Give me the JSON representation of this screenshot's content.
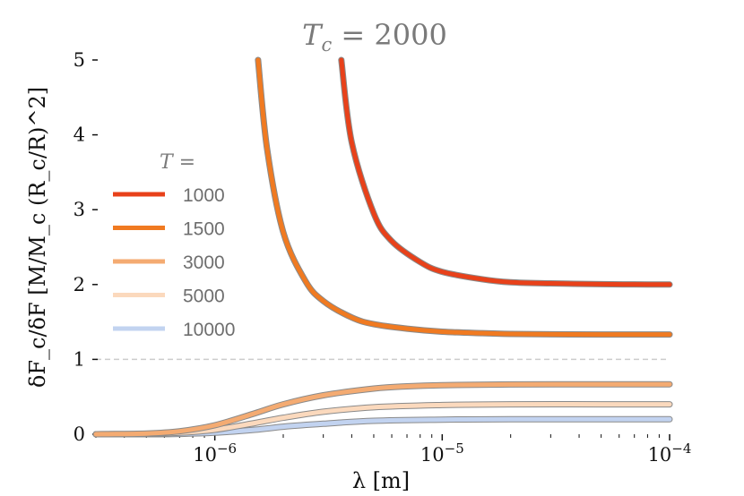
{
  "chart_data": {
    "type": "line",
    "title": "T_c = 2000",
    "title_parts": {
      "base": "T",
      "sub": "c",
      "rest": " = 2000"
    },
    "xlabel": "λ [m]",
    "ylabel": "δF_c/δF [M/M_c (R_c/R)^2]",
    "xscale": "log",
    "xlim": [
      3e-07,
      0.0001
    ],
    "ylim": [
      0,
      5
    ],
    "x_ticks": [
      {
        "value": 1e-06,
        "base": "10",
        "exp": "−6"
      },
      {
        "value": 1e-05,
        "base": "10",
        "exp": "−5"
      },
      {
        "value": 0.0001,
        "base": "10",
        "exp": "−4"
      }
    ],
    "y_ticks": [
      "0",
      "1",
      "2",
      "3",
      "4",
      "5"
    ],
    "y_tick_values": [
      0,
      1,
      2,
      3,
      4,
      5
    ],
    "reference_line": {
      "y": 1,
      "style": "dashed",
      "color": "#cccccc"
    },
    "grid": false,
    "legend": {
      "title": "T =",
      "placement": "center-left"
    },
    "series": [
      {
        "name": "1000",
        "color": "#e8411a",
        "x": [
          3.6e-06,
          4e-06,
          5e-06,
          6e-06,
          8e-06,
          1e-05,
          1.5e-05,
          2e-05,
          3e-05,
          5e-05,
          7e-05,
          0.0001
        ],
        "y": [
          5.0,
          3.9,
          2.95,
          2.58,
          2.3,
          2.17,
          2.07,
          2.03,
          2.015,
          2.005,
          2.002,
          2.0
        ]
      },
      {
        "name": "1500",
        "color": "#f07a21",
        "x": [
          1.55e-06,
          1.7e-06,
          2e-06,
          2.5e-06,
          3e-06,
          4e-06,
          5e-06,
          7e-06,
          1e-05,
          1.5e-05,
          2e-05,
          3e-05,
          5e-05,
          0.0001
        ],
        "y": [
          5.0,
          3.8,
          2.7,
          2.05,
          1.78,
          1.56,
          1.47,
          1.41,
          1.37,
          1.35,
          1.34,
          1.335,
          1.333,
          1.333
        ]
      },
      {
        "name": "3000",
        "color": "#f4ab72",
        "x": [
          3e-07,
          5e-07,
          7e-07,
          1e-06,
          1.5e-06,
          2e-06,
          3e-06,
          5e-06,
          7e-06,
          1e-05,
          2e-05,
          5e-05,
          0.0001
        ],
        "y": [
          0.0,
          0.01,
          0.04,
          0.12,
          0.28,
          0.4,
          0.52,
          0.61,
          0.64,
          0.655,
          0.665,
          0.667,
          0.667
        ]
      },
      {
        "name": "5000",
        "color": "#fbd9bd",
        "x": [
          3e-07,
          5e-07,
          7e-07,
          1e-06,
          1.5e-06,
          2e-06,
          3e-06,
          5e-06,
          1e-05,
          2e-05,
          5e-05,
          0.0001
        ],
        "y": [
          0.0,
          0.005,
          0.02,
          0.06,
          0.15,
          0.22,
          0.3,
          0.36,
          0.39,
          0.4,
          0.4,
          0.4
        ]
      },
      {
        "name": "10000",
        "color": "#c2d3f0",
        "x": [
          3e-07,
          5e-07,
          7e-07,
          1e-06,
          1.5e-06,
          2e-06,
          3e-06,
          5e-06,
          1e-05,
          2e-05,
          5e-05,
          0.0001
        ],
        "y": [
          0.0,
          0.0,
          0.005,
          0.02,
          0.06,
          0.1,
          0.14,
          0.18,
          0.195,
          0.2,
          0.2,
          0.2
        ]
      }
    ]
  }
}
